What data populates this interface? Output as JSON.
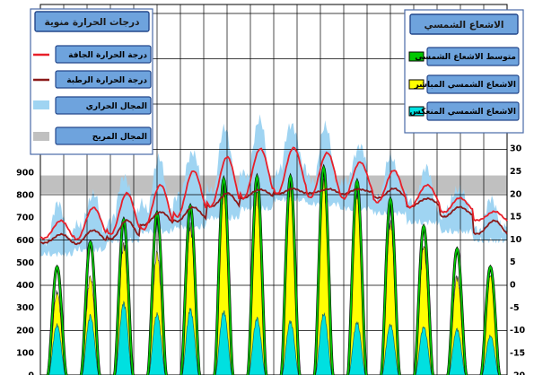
{
  "chart_data": {
    "type": "area",
    "title": "",
    "xlabel": "",
    "x_days": 14,
    "samples_per_day": 24,
    "grid": true,
    "legend_placement": "top-left and top-right",
    "left_axis": {
      "ylabel": "",
      "ylim": [
        0,
        1000
      ],
      "ticks": [
        "900",
        "800",
        "700",
        "600",
        "500",
        "400",
        "300",
        "200",
        "100",
        "0"
      ],
      "tick_values": [
        900,
        800,
        700,
        600,
        500,
        400,
        300,
        200,
        100,
        0
      ]
    },
    "right_axis": {
      "ylabel": "",
      "ylim": [
        -20,
        40
      ],
      "ticks": [
        "30",
        "25",
        "20",
        "15",
        "10",
        "5",
        "0",
        "-5",
        "-10",
        "-15",
        "-20"
      ],
      "tick_values": [
        30,
        25,
        20,
        15,
        10,
        5,
        0,
        -5,
        -10,
        -15,
        -20
      ]
    },
    "comfort_zone": {
      "low": 20,
      "high": 24,
      "color": "#c0c0c0"
    },
    "temperature_legend": {
      "title": "درجات الحرارة منوية",
      "items": [
        {
          "label": "درجة الحرارة الجافة",
          "color": "#e8202a",
          "kind": "line"
        },
        {
          "label": "درجة الحرارة الرطبة",
          "color": "#8b1a1a",
          "kind": "line"
        },
        {
          "label": "المجال الحراري",
          "color": "#9fd4f2",
          "kind": "band"
        },
        {
          "label": "المجال المريح",
          "color": "#c0c0c0",
          "kind": "band"
        }
      ]
    },
    "solar_legend": {
      "title": "الاشعاع الشمسي",
      "items": [
        {
          "label": "متوسط الاشعاع الشمسي",
          "color": "#00c800"
        },
        {
          "label": "الاشعاع الشمسي المباشر",
          "color": "#ffff00"
        },
        {
          "label": "الاشعاع الشمسي المنعكس",
          "color": "#00e0e0"
        }
      ]
    },
    "series": [
      {
        "name": "متوسط الاشعاع الشمسي",
        "axis": "left",
        "color": "#00c800",
        "daily_peak": [
          480,
          590,
          690,
          720,
          750,
          870,
          880,
          880,
          920,
          860,
          780,
          660,
          560,
          480
        ]
      },
      {
        "name": "الاشعاع الشمسي المباشر",
        "axis": "left",
        "color": "#ffff00",
        "daily_peak": [
          380,
          450,
          600,
          560,
          680,
          840,
          830,
          860,
          890,
          830,
          700,
          590,
          450,
          460
        ]
      },
      {
        "name": "الاشعاع الشمسي المنعكس",
        "axis": "left",
        "color": "#00e0e0",
        "daily_peak": [
          230,
          270,
          330,
          280,
          300,
          290,
          260,
          245,
          280,
          240,
          230,
          220,
          210,
          180
        ]
      },
      {
        "name": "درجة الحرارة الجافة",
        "axis": "right",
        "color": "#e8202a",
        "daily_min": [
          10,
          10,
          11,
          12,
          15,
          17,
          19,
          20,
          19,
          19,
          18,
          17,
          16,
          14
        ],
        "daily_max": [
          14,
          17,
          20,
          22,
          25,
          28,
          30,
          30,
          29,
          27,
          25,
          22,
          19,
          16
        ]
      },
      {
        "name": "درجة الحرارة الرطبة",
        "axis": "right",
        "color": "#8b1a1a",
        "daily_min": [
          9,
          9,
          10,
          13,
          14,
          17,
          19,
          20,
          20,
          20,
          19,
          17,
          15,
          11
        ],
        "daily_max": [
          11,
          12,
          14,
          16,
          17,
          20,
          21,
          21,
          21,
          21,
          21,
          19,
          17,
          14
        ]
      },
      {
        "name": "المجال الحراري",
        "axis": "right",
        "color": "#9fd4f2",
        "daily_low": [
          7,
          8,
          10,
          12,
          13,
          15,
          17,
          19,
          18,
          17,
          16,
          14,
          12,
          10
        ],
        "daily_high": [
          17,
          20,
          24,
          27,
          30,
          34,
          36,
          36,
          34,
          31,
          28,
          25,
          22,
          18
        ]
      }
    ]
  }
}
